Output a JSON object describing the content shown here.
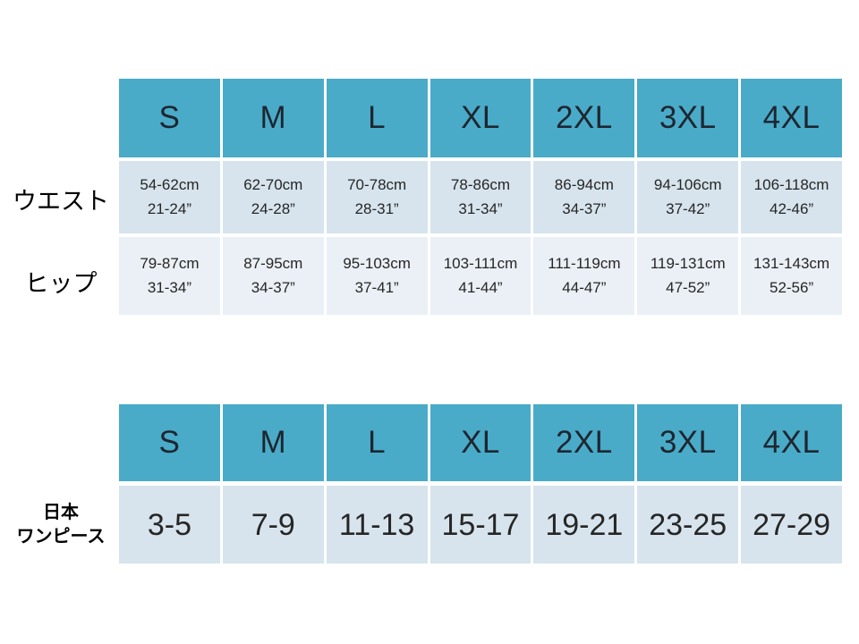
{
  "colors": {
    "page_bg": "#ffffff",
    "header_bg": "#49abc8",
    "band_dark_bg": "#d7e4ed",
    "band_light_bg": "#eaf0f5",
    "header_text": "#1e2630",
    "cell_text": "#262626"
  },
  "size_headers": [
    "S",
    "M",
    "L",
    "XL",
    "2XL",
    "3XL",
    "4XL"
  ],
  "measurement_table": {
    "rows": [
      {
        "label": "ウエスト",
        "cells": [
          {
            "cm": "54-62cm",
            "inch": "21-24”"
          },
          {
            "cm": "62-70cm",
            "inch": "24-28”"
          },
          {
            "cm": "70-78cm",
            "inch": "28-31”"
          },
          {
            "cm": "78-86cm",
            "inch": "31-34”"
          },
          {
            "cm": "86-94cm",
            "inch": "34-37”"
          },
          {
            "cm": "94-106cm",
            "inch": "37-42”"
          },
          {
            "cm": "106-118cm",
            "inch": "42-46”"
          }
        ]
      },
      {
        "label": "ヒップ",
        "cells": [
          {
            "cm": "79-87cm",
            "inch": "31-34”"
          },
          {
            "cm": "87-95cm",
            "inch": "34-37”"
          },
          {
            "cm": "95-103cm",
            "inch": "37-41”"
          },
          {
            "cm": "103-111cm",
            "inch": "41-44”"
          },
          {
            "cm": "111-119cm",
            "inch": "44-47”"
          },
          {
            "cm": "119-131cm",
            "inch": "47-52”"
          },
          {
            "cm": "131-143cm",
            "inch": "52-56”"
          }
        ]
      }
    ]
  },
  "japan_size_table": {
    "label_line1": "日本",
    "label_line2": "ワンピース",
    "values": [
      "3-5",
      "7-9",
      "11-13",
      "15-17",
      "19-21",
      "23-25",
      "27-29"
    ]
  }
}
